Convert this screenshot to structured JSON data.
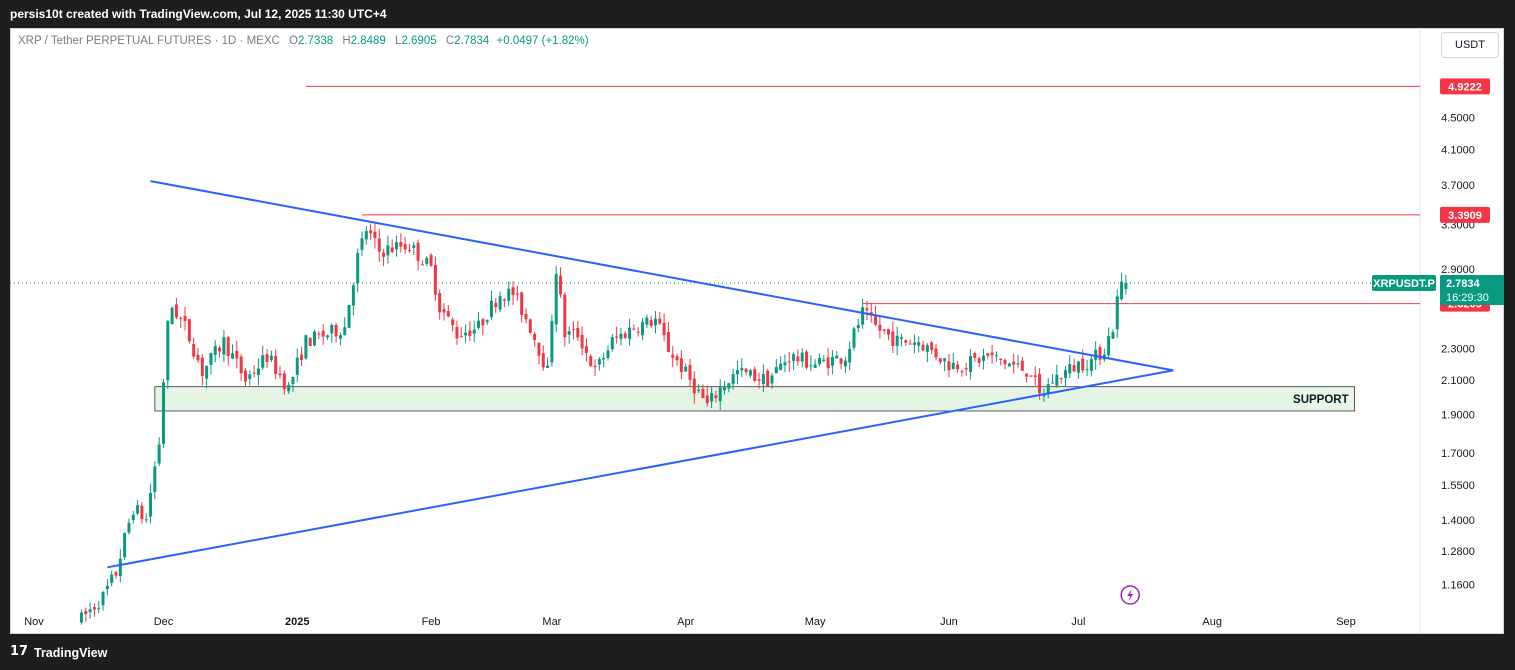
{
  "header": {
    "credit": "persis10t created with TradingView.com, Jul 12, 2025 11:30 UTC+4"
  },
  "legend": {
    "symbol": "XRP / Tether PERPETUAL FUTURES · 1D · MEXC",
    "o_label": "O",
    "o": "2.7338",
    "h_label": "H",
    "h": "2.8489",
    "l_label": "L",
    "l": "2.6905",
    "c_label": "C",
    "c": "2.7834",
    "change": "+0.0497 (+1.82%)"
  },
  "currency_button": "USDT",
  "footer": {
    "logo": "17",
    "brand": "TradingView"
  },
  "colors": {
    "up": "#089981",
    "down": "#f23645",
    "trend": "#2962ff",
    "level": "#f23645",
    "support_fill": "#e6f4e6"
  },
  "chart_data": {
    "type": "candlestick",
    "y_ticks": [
      "4.5000",
      "4.1000",
      "3.7000",
      "3.3000",
      "2.9000",
      "2.3000",
      "2.1000",
      "1.9000",
      "1.7000",
      "1.5500",
      "1.4000",
      "1.2800",
      "1.1600"
    ],
    "x_ticks": [
      "Nov",
      "Dec",
      "2025",
      "Feb",
      "Mar",
      "Apr",
      "May",
      "Jun",
      "Jul",
      "Aug",
      "Sep"
    ],
    "price_levels": [
      {
        "label": "4.9222",
        "value": 4.9222,
        "start": "2025-01-03"
      },
      {
        "label": "3.3909",
        "value": 3.3909,
        "start": "2025-01-16"
      },
      {
        "label": "2.6209",
        "value": 2.6209,
        "start": "2025-05-12"
      }
    ],
    "current_price": {
      "symbol": "XRPUSDT.P",
      "price": "2.7834",
      "countdown": "16:29:30",
      "value": 2.7834
    },
    "zone": {
      "label": "SUPPORT",
      "top": 2.06,
      "bottom": 1.92,
      "start": "2024-11-29",
      "end": "2025-09-03"
    },
    "trendlines": [
      {
        "name": "upper",
        "points": [
          [
            "2024-11-28",
            3.74
          ],
          [
            "2025-07-23",
            2.16
          ]
        ]
      },
      {
        "name": "lower",
        "points": [
          [
            "2024-11-18",
            1.22
          ],
          [
            "2025-07-23",
            2.16
          ]
        ]
      }
    ],
    "waypoints": [
      [
        "2024-11-12",
        1.05
      ],
      [
        "2024-11-17",
        1.12
      ],
      [
        "2024-11-20",
        1.2
      ],
      [
        "2024-11-24",
        1.45
      ],
      [
        "2024-11-27",
        1.4
      ],
      [
        "2024-11-30",
        1.75
      ],
      [
        "2024-12-02",
        2.45
      ],
      [
        "2024-12-03",
        2.6
      ],
      [
        "2024-12-06",
        2.45
      ],
      [
        "2024-12-10",
        2.15
      ],
      [
        "2024-12-15",
        2.35
      ],
      [
        "2024-12-20",
        2.1
      ],
      [
        "2024-12-25",
        2.25
      ],
      [
        "2024-12-30",
        2.05
      ],
      [
        "2025-01-03",
        2.35
      ],
      [
        "2025-01-08",
        2.4
      ],
      [
        "2025-01-12",
        2.45
      ],
      [
        "2025-01-15",
        3.0
      ],
      [
        "2025-01-17",
        3.25
      ],
      [
        "2025-01-20",
        3.05
      ],
      [
        "2025-01-25",
        3.1
      ],
      [
        "2025-01-27",
        3.1
      ],
      [
        "2025-02-01",
        2.9
      ],
      [
        "2025-02-03",
        2.6
      ],
      [
        "2025-02-07",
        2.4
      ],
      [
        "2025-02-12",
        2.45
      ],
      [
        "2025-02-17",
        2.7
      ],
      [
        "2025-02-20",
        2.7
      ],
      [
        "2025-02-24",
        2.45
      ],
      [
        "2025-02-28",
        2.15
      ],
      [
        "2025-03-02",
        2.9
      ],
      [
        "2025-03-04",
        2.4
      ],
      [
        "2025-03-07",
        2.4
      ],
      [
        "2025-03-11",
        2.15
      ],
      [
        "2025-03-15",
        2.35
      ],
      [
        "2025-03-20",
        2.45
      ],
      [
        "2025-03-25",
        2.5
      ],
      [
        "2025-03-28",
        2.3
      ],
      [
        "2025-04-02",
        2.1
      ],
      [
        "2025-04-06",
        1.95
      ],
      [
        "2025-04-09",
        2.05
      ],
      [
        "2025-04-13",
        2.15
      ],
      [
        "2025-04-20",
        2.1
      ],
      [
        "2025-04-25",
        2.25
      ],
      [
        "2025-05-01",
        2.2
      ],
      [
        "2025-05-08",
        2.25
      ],
      [
        "2025-05-12",
        2.55
      ],
      [
        "2025-05-15",
        2.45
      ],
      [
        "2025-05-20",
        2.35
      ],
      [
        "2025-05-25",
        2.35
      ],
      [
        "2025-06-01",
        2.2
      ],
      [
        "2025-06-05",
        2.2
      ],
      [
        "2025-06-10",
        2.25
      ],
      [
        "2025-06-15",
        2.2
      ],
      [
        "2025-06-20",
        2.15
      ],
      [
        "2025-06-22",
        2.0
      ],
      [
        "2025-06-25",
        2.1
      ],
      [
        "2025-07-01",
        2.2
      ],
      [
        "2025-07-04",
        2.22
      ],
      [
        "2025-07-07",
        2.3
      ],
      [
        "2025-07-09",
        2.45
      ],
      [
        "2025-07-10",
        2.65
      ],
      [
        "2025-07-11",
        2.78
      ],
      [
        "2025-07-12",
        2.7834
      ]
    ],
    "last_candle": {
      "date": "2025-07-12",
      "open": 2.7338,
      "high": 2.8489,
      "low": 2.6905,
      "close": 2.7834
    }
  }
}
